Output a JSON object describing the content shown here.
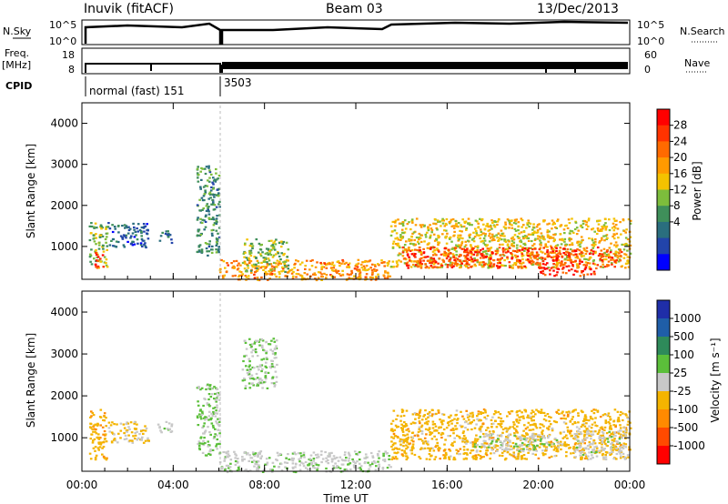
{
  "header": {
    "station": "Inuvik (fitACF)",
    "beam": "Beam 03",
    "date": "13/Dec/2013"
  },
  "strip": {
    "nsky_label": "N.Sky",
    "nsky_ticks": [
      "10^5",
      "10^0"
    ],
    "nsearch_label": "N.Search",
    "nsearch_ticks": [
      "10^5",
      "10^0"
    ],
    "freq_label": "Freq.",
    "freq_unit": "[MHz]",
    "freq_ticks": [
      "18",
      "8"
    ],
    "nave_label": "Nave",
    "nave_ticks": [
      "60",
      "0"
    ],
    "cpid_label": "CPID",
    "cpid_segments": [
      "normal (fast) 151",
      "3503"
    ]
  },
  "axes": {
    "ylabel": "Slant Range [km]",
    "xlabel": "Time UT",
    "xticks": [
      "00:00",
      "04:00",
      "08:00",
      "12:00",
      "16:00",
      "20:00",
      "00:00"
    ],
    "yticks": [
      "1000",
      "2000",
      "3000",
      "4000"
    ]
  },
  "colorbars": {
    "power": {
      "label": "Power [dB]",
      "ticks": [
        "28",
        "24",
        "20",
        "16",
        "12",
        "8",
        "4"
      ],
      "colors": [
        "#ff0000",
        "#ff3300",
        "#ff6a00",
        "#ff9a00",
        "#f4c200",
        "#7dbd3c",
        "#3f8f5a",
        "#2a6e7e",
        "#2244aa",
        "#0000ff"
      ]
    },
    "velocity": {
      "label": "Velocity [m s⁻¹]",
      "ticks": [
        "1000",
        "500",
        "100",
        "25",
        "-25",
        "-100",
        "-500",
        "-1000"
      ],
      "colors": [
        "#1f2ea8",
        "#1f5ea8",
        "#2e8a5a",
        "#5bbf3a",
        "#c8c8c8",
        "#f4b400",
        "#ff8a00",
        "#ff4a00",
        "#ff0000"
      ]
    }
  },
  "chart_data": [
    {
      "type": "heatmap",
      "name": "power",
      "x_range_hours": [
        0,
        24
      ],
      "y_range_km": [
        200,
        4500
      ],
      "value_range_db": [
        0,
        32
      ],
      "regions": [
        {
          "t": [
            0.3,
            1.1
          ],
          "r": [
            500,
            1600
          ],
          "db": 14
        },
        {
          "t": [
            0.5,
            0.9
          ],
          "r": [
            500,
            900
          ],
          "db": 30
        },
        {
          "t": [
            1.1,
            2.9
          ],
          "r": [
            1000,
            1600
          ],
          "db": 6
        },
        {
          "t": [
            3.3,
            3.9
          ],
          "r": [
            1100,
            1400
          ],
          "db": 8
        },
        {
          "t": [
            5.0,
            6.0
          ],
          "r": [
            800,
            3000
          ],
          "db": 10
        },
        {
          "t": [
            6.0,
            13.5
          ],
          "r": [
            200,
            700
          ],
          "db": 22
        },
        {
          "t": [
            7.0,
            9.0
          ],
          "r": [
            400,
            1200
          ],
          "db": 14
        },
        {
          "t": [
            13.5,
            24.0
          ],
          "r": [
            500,
            1700
          ],
          "db": 18
        },
        {
          "t": [
            14.0,
            23.6
          ],
          "r": [
            500,
            1000
          ],
          "db": 28
        },
        {
          "t": [
            20.0,
            22.5
          ],
          "r": [
            300,
            500
          ],
          "db": 30
        }
      ]
    },
    {
      "type": "heatmap",
      "name": "velocity",
      "x_range_hours": [
        0,
        24
      ],
      "y_range_km": [
        200,
        4500
      ],
      "value_range_ms": [
        -1000,
        1000
      ],
      "regions": [
        {
          "t": [
            0.3,
            1.1
          ],
          "r": [
            500,
            1700
          ],
          "v": -300
        },
        {
          "t": [
            1.1,
            2.9
          ],
          "r": [
            900,
            1400
          ],
          "v": -150
        },
        {
          "t": [
            3.3,
            3.9
          ],
          "r": [
            1100,
            1400
          ],
          "v": 80
        },
        {
          "t": [
            5.0,
            6.0
          ],
          "r": [
            600,
            2300
          ],
          "v": 150
        },
        {
          "t": [
            6.0,
            13.5
          ],
          "r": [
            200,
            700
          ],
          "v": 50
        },
        {
          "t": [
            7.0,
            8.5
          ],
          "r": [
            2200,
            3400
          ],
          "v": 100
        },
        {
          "t": [
            13.5,
            24.0
          ],
          "r": [
            500,
            1700
          ],
          "v": -250
        },
        {
          "t": [
            17.0,
            21.0
          ],
          "r": [
            700,
            1100
          ],
          "v": 60
        },
        {
          "t": [
            21.5,
            23.8
          ],
          "r": [
            500,
            1200
          ],
          "v": 0
        }
      ]
    }
  ]
}
